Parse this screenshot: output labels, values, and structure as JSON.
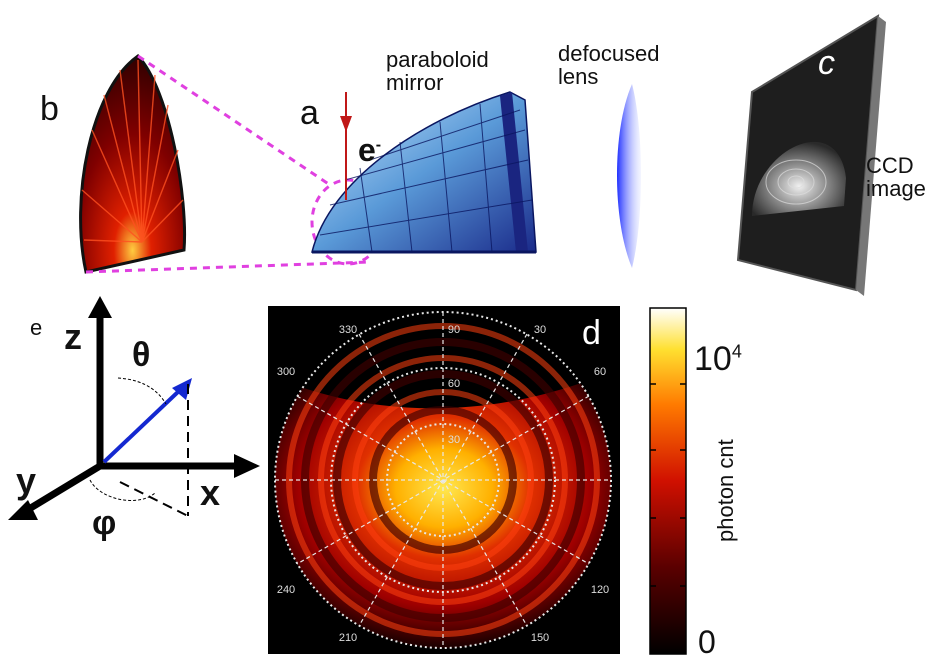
{
  "panels": {
    "a": "a",
    "b": "b",
    "c": "c",
    "d": "d",
    "e": "e"
  },
  "labels": {
    "paraboloid": "paraboloid\nmirror",
    "defocused": "defocused\nlens",
    "ccd": "CCD\nimage",
    "electron": "e",
    "electron_sup": "-"
  },
  "axes": {
    "z": "z",
    "x": "x",
    "y": "y",
    "theta": "θ",
    "phi": "φ"
  },
  "polar_ticks": {
    "azimuth": [
      "330",
      "30",
      "300",
      "60",
      "240",
      "120",
      "210",
      "150"
    ],
    "zenith": [
      "90",
      "60",
      "30"
    ]
  },
  "colorbar": {
    "label": "photon cnt",
    "max": "10",
    "max_sup": "4",
    "min": "0"
  },
  "colors": {
    "magenta_dash": "#e040e0",
    "mirror_blue": "#3050c0",
    "lens_blue": "#3040ff",
    "arrow_red": "#c01818",
    "vector_blue": "#1428d0"
  }
}
